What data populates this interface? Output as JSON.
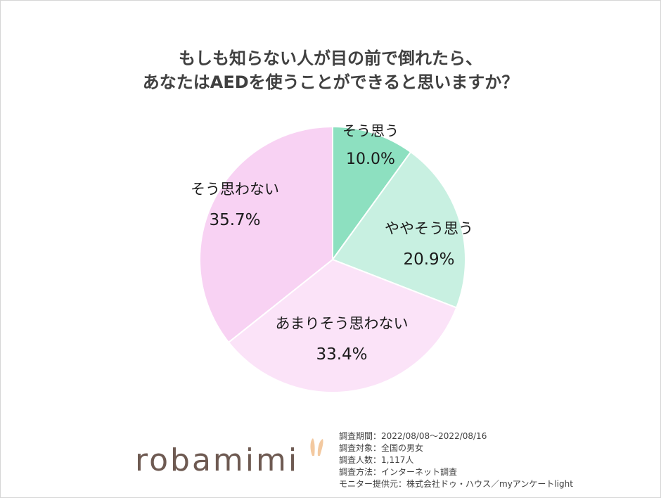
{
  "title_lines": [
    "もしも知らない人が目の前で倒れたら、",
    "あなたはAEDを使うことができると思いますか？"
  ],
  "chart_data": {
    "type": "pie",
    "title": "もしも知らない人が目の前で倒れたら、あなたはAEDを使うことができると思いますか？",
    "slices": [
      {
        "label": "そう思う",
        "value": 10.0,
        "value_label": "10.0%",
        "color": "#8de0c0"
      },
      {
        "label": "ややそう思う",
        "value": 20.9,
        "value_label": "20.9%",
        "color": "#c8f0e1"
      },
      {
        "label": "あまりそう思わない",
        "value": 33.4,
        "value_label": "33.4%",
        "color": "#fbe3f8"
      },
      {
        "label": "そう思わない",
        "value": 35.7,
        "value_label": "35.7%",
        "color": "#f8d2f3"
      }
    ],
    "start_angle_deg": 0,
    "direction": "clockwise",
    "legend": "none"
  },
  "brand": {
    "logo_text": "robamimi",
    "logo_color": "#6e5a52",
    "ear_color": "#f3c9a0"
  },
  "survey_info": [
    "調査期間：2022/08/08～2022/08/16",
    "調査対象：全国の男女",
    "調査人数：1,117人",
    "調査方法：インターネット調査",
    "モニター提供元：株式会社ドゥ・ハウス／myアンケートlight"
  ]
}
